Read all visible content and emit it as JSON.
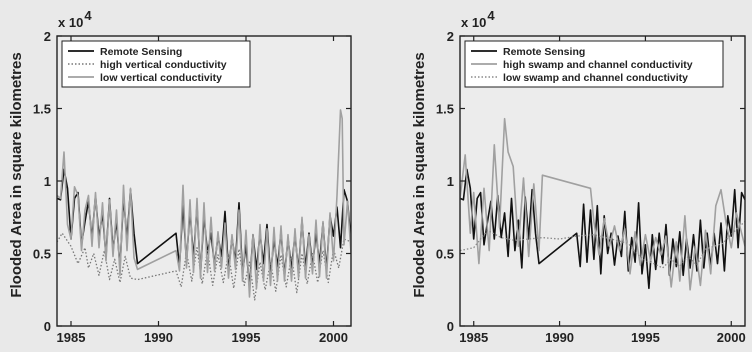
{
  "chart_data": [
    {
      "type": "line",
      "title": "",
      "xlabel": "",
      "ylabel": "Flooded Area in square kilometres",
      "y_multiplier": "x 10",
      "y_multiplier_exp": "4",
      "xlim": [
        1984.2,
        2001
      ],
      "ylim": [
        0,
        20000
      ],
      "xticks": [
        1985,
        1990,
        1995,
        2000
      ],
      "yticks": [
        0,
        5000,
        10000,
        15000,
        20000
      ],
      "ytick_labels": [
        "0",
        "0.5",
        "1",
        "1.5",
        "2"
      ],
      "legend_position": "top-left",
      "series": [
        {
          "name": "Remote Sensing",
          "color": "#111111",
          "style": "solid",
          "x": [
            1984.2,
            1984.4,
            1984.6,
            1984.8,
            1985.0,
            1985.2,
            1985.4,
            1985.6,
            1985.8,
            1986.0,
            1986.2,
            1986.4,
            1986.6,
            1986.8,
            1987.0,
            1987.2,
            1987.4,
            1987.6,
            1987.8,
            1988.0,
            1988.2,
            1988.4,
            1988.6,
            1988.8,
            1991.0,
            1991.2,
            1991.4,
            1991.6,
            1991.8,
            1992.0,
            1992.2,
            1992.4,
            1992.6,
            1992.8,
            1993.0,
            1993.2,
            1993.4,
            1993.6,
            1993.8,
            1994.0,
            1994.2,
            1994.4,
            1994.6,
            1994.8,
            1995.0,
            1995.2,
            1995.4,
            1995.6,
            1995.8,
            1996.0,
            1996.2,
            1996.4,
            1996.6,
            1996.8,
            1997.0,
            1997.2,
            1997.4,
            1997.6,
            1997.8,
            1998.0,
            1998.2,
            1998.4,
            1998.6,
            1998.8,
            1999.0,
            1999.2,
            1999.4,
            1999.6,
            1999.8,
            2000.0,
            2000.2,
            2000.4,
            2000.6,
            2000.8,
            2001.0
          ],
          "y": [
            8800,
            8700,
            10800,
            9500,
            6000,
            8800,
            9200,
            5600,
            7200,
            8600,
            6000,
            9000,
            6100,
            7800,
            4800,
            8800,
            5200,
            7300,
            4000,
            8900,
            6000,
            9400,
            6400,
            4300,
            6400,
            4100,
            8400,
            4400,
            8000,
            4600,
            8300,
            3600,
            7600,
            5000,
            6400,
            4200,
            6200,
            4800,
            7900,
            3800,
            6100,
            4400,
            8500,
            3600,
            5600,
            2600,
            6300,
            3900,
            6400,
            4300,
            7000,
            3500,
            6000,
            4100,
            6500,
            3500,
            6000,
            4000,
            6300,
            3800,
            7300,
            4000,
            6400,
            4100,
            6400,
            4300,
            7100,
            3800,
            7600,
            6200,
            8200,
            5400,
            9400,
            8600,
            5900
          ]
        },
        {
          "name": "high vertical conductivity",
          "color": "#777777",
          "style": "dotted",
          "x": [
            1984.2,
            1984.5,
            1985.0,
            1985.4,
            1985.8,
            1986.0,
            1986.3,
            1986.6,
            1986.9,
            1987.2,
            1987.5,
            1987.8,
            1988.1,
            1988.4,
            1988.8,
            1991.0,
            1991.3,
            1991.6,
            1991.9,
            1992.2,
            1992.5,
            1992.8,
            1993.1,
            1993.4,
            1993.7,
            1994.0,
            1994.3,
            1994.6,
            1994.9,
            1995.2,
            1995.5,
            1995.8,
            1996.1,
            1996.4,
            1996.7,
            1997.0,
            1997.3,
            1997.6,
            1997.9,
            1998.2,
            1998.5,
            1998.8,
            1999.1,
            1999.4,
            1999.7,
            2000.0,
            2000.3,
            2000.6,
            2001.0
          ],
          "y": [
            5800,
            6400,
            5500,
            4300,
            5400,
            4000,
            5000,
            3500,
            5200,
            3200,
            4600,
            3000,
            4800,
            3300,
            3200,
            3800,
            2700,
            5100,
            3100,
            5400,
            2900,
            5200,
            2800,
            4900,
            3000,
            5000,
            2600,
            5300,
            2800,
            4400,
            1800,
            4400,
            2500,
            4400,
            2400,
            4900,
            2700,
            4800,
            2300,
            5000,
            2900,
            5000,
            3000,
            5200,
            3000,
            5300,
            4000,
            6000,
            5800
          ]
        },
        {
          "name": "low vertical conductivity",
          "color": "#a0a0a0",
          "style": "solid",
          "x": [
            1984.2,
            1984.4,
            1984.6,
            1984.8,
            1985.0,
            1985.2,
            1985.4,
            1985.6,
            1985.8,
            1986.0,
            1986.2,
            1986.4,
            1986.6,
            1986.8,
            1987.0,
            1987.2,
            1987.4,
            1987.6,
            1987.8,
            1988.0,
            1988.2,
            1988.4,
            1988.6,
            1988.8,
            1991.0,
            1991.2,
            1991.4,
            1991.6,
            1991.8,
            1992.0,
            1992.2,
            1992.4,
            1992.6,
            1992.8,
            1993.0,
            1993.2,
            1993.4,
            1993.6,
            1993.8,
            1994.0,
            1994.2,
            1994.4,
            1994.6,
            1994.8,
            1995.0,
            1995.2,
            1995.4,
            1995.6,
            1995.8,
            1996.0,
            1996.2,
            1996.4,
            1996.6,
            1996.8,
            1997.0,
            1997.2,
            1997.4,
            1997.6,
            1997.8,
            1998.0,
            1998.2,
            1998.4,
            1998.6,
            1998.8,
            1999.0,
            1999.2,
            1999.4,
            1999.6,
            1999.8,
            2000.0,
            2000.2,
            2000.4,
            2000.5,
            2000.6,
            2000.8,
            2001.0
          ],
          "y": [
            9000,
            8800,
            12000,
            7000,
            6000,
            9600,
            9000,
            5200,
            8000,
            9000,
            5500,
            9200,
            5400,
            8500,
            4500,
            8700,
            4800,
            8000,
            3500,
            9700,
            5200,
            9500,
            4700,
            3900,
            5200,
            3800,
            9700,
            4000,
            8700,
            3700,
            8800,
            3300,
            8500,
            3700,
            7500,
            3800,
            6500,
            4000,
            7100,
            3300,
            6300,
            3900,
            8000,
            3100,
            6600,
            2000,
            6300,
            2600,
            7000,
            3100,
            6700,
            2800,
            6800,
            3100,
            6900,
            3100,
            6300,
            3100,
            6700,
            3300,
            7500,
            3300,
            6300,
            3600,
            7300,
            3400,
            7200,
            3300,
            7800,
            4500,
            9000,
            14900,
            14300,
            5600,
            8600,
            5000
          ]
        }
      ]
    },
    {
      "type": "line",
      "title": "",
      "xlabel": "",
      "ylabel": "Flooded Area in square kilometres",
      "y_multiplier": "x 10",
      "y_multiplier_exp": "4",
      "xlim": [
        1984.2,
        2000.8
      ],
      "ylim": [
        0,
        20000
      ],
      "xticks": [
        1985,
        1990,
        1995,
        2000
      ],
      "yticks": [
        0,
        5000,
        10000,
        15000,
        20000
      ],
      "ytick_labels": [
        "0",
        "0.5",
        "1",
        "1.5",
        "2"
      ],
      "legend_position": "top-left",
      "series": [
        {
          "name": "Remote Sensing",
          "color": "#111111",
          "style": "solid",
          "x": [
            1984.2,
            1984.4,
            1984.6,
            1984.8,
            1985.0,
            1985.2,
            1985.4,
            1985.6,
            1985.8,
            1986.0,
            1986.2,
            1986.4,
            1986.6,
            1986.8,
            1987.0,
            1987.2,
            1987.4,
            1987.6,
            1987.8,
            1988.0,
            1988.2,
            1988.4,
            1988.6,
            1988.8,
            1991.0,
            1991.2,
            1991.4,
            1991.6,
            1991.8,
            1992.0,
            1992.2,
            1992.4,
            1992.6,
            1992.8,
            1993.0,
            1993.2,
            1993.4,
            1993.6,
            1993.8,
            1994.0,
            1994.2,
            1994.4,
            1994.6,
            1994.8,
            1995.0,
            1995.2,
            1995.4,
            1995.6,
            1995.8,
            1996.0,
            1996.2,
            1996.4,
            1996.6,
            1996.8,
            1997.0,
            1997.2,
            1997.4,
            1997.6,
            1997.8,
            1998.0,
            1998.2,
            1998.4,
            1998.6,
            1998.8,
            1999.0,
            1999.2,
            1999.4,
            1999.6,
            1999.8,
            2000.0,
            2000.2,
            2000.4,
            2000.6,
            2000.8
          ],
          "y": [
            8800,
            8700,
            10800,
            9500,
            6000,
            8800,
            9200,
            5600,
            7200,
            8600,
            6000,
            9000,
            6100,
            7800,
            4800,
            8800,
            5200,
            7300,
            4000,
            8900,
            6000,
            9400,
            6400,
            4300,
            6400,
            4100,
            8400,
            4400,
            8000,
            4600,
            8300,
            3600,
            7600,
            5000,
            6400,
            4200,
            6200,
            4800,
            7900,
            3800,
            6100,
            4400,
            8500,
            3600,
            5600,
            2600,
            6300,
            3900,
            6400,
            4300,
            7000,
            3500,
            6000,
            4100,
            6500,
            3500,
            6000,
            4000,
            6300,
            3800,
            7300,
            4000,
            6400,
            4100,
            6400,
            4300,
            7100,
            3800,
            7600,
            6200,
            9400,
            5400,
            9200,
            8700
          ]
        },
        {
          "name": "high swamp and channel conductivity",
          "color": "#a0a0a0",
          "style": "solid",
          "x": [
            1984.2,
            1984.5,
            1984.8,
            1985.0,
            1985.3,
            1985.6,
            1985.9,
            1986.2,
            1986.5,
            1986.8,
            1987.0,
            1987.3,
            1987.6,
            1987.9,
            1988.2,
            1988.5,
            1988.8,
            1989.0,
            1991.8,
            1992.0,
            1992.3,
            1992.6,
            1992.9,
            1993.2,
            1993.5,
            1993.8,
            1994.1,
            1994.4,
            1994.7,
            1995.0,
            1995.3,
            1995.6,
            1995.9,
            1996.2,
            1996.5,
            1996.8,
            1997.0,
            1997.3,
            1997.6,
            1997.9,
            1998.2,
            1998.5,
            1998.8,
            1999.1,
            1999.4,
            1999.7,
            2000.0,
            2000.3,
            2000.6,
            2000.8
          ],
          "y": [
            8800,
            11800,
            6400,
            9200,
            4300,
            9500,
            5200,
            12500,
            6800,
            14300,
            12000,
            11000,
            5500,
            10200,
            4800,
            9800,
            5200,
            10400,
            9500,
            7200,
            4900,
            7400,
            5500,
            6900,
            5200,
            6700,
            3600,
            6500,
            4200,
            6300,
            4500,
            6100,
            4900,
            6200,
            2700,
            5800,
            3100,
            7600,
            2500,
            5500,
            2800,
            6600,
            3600,
            8300,
            9400,
            7100,
            5400,
            7800,
            6400,
            5500
          ]
        },
        {
          "name": "low swamp and channel conductivity",
          "color": "#8a8a8a",
          "style": "dotted",
          "x": [
            1984.2,
            1985.0,
            1985.8,
            1986.6,
            1987.4,
            1988.2,
            1989.0,
            1990.0,
            1991.0,
            1992.0,
            1993.0,
            1994.0,
            1994.5,
            1995.0,
            1995.5,
            1996.0,
            1996.5,
            1997.0,
            1997.5,
            1998.0,
            1998.5,
            1999.0,
            1999.5,
            2000.0,
            2000.4,
            2000.8
          ],
          "y": [
            5200,
            5400,
            6600,
            6100,
            5900,
            6000,
            6100,
            6000,
            6200,
            6300,
            6000,
            5700,
            5000,
            4500,
            4300,
            4000,
            4600,
            4100,
            4800,
            4200,
            5300,
            5500,
            5700,
            6300,
            6800,
            7200
          ]
        }
      ]
    }
  ]
}
